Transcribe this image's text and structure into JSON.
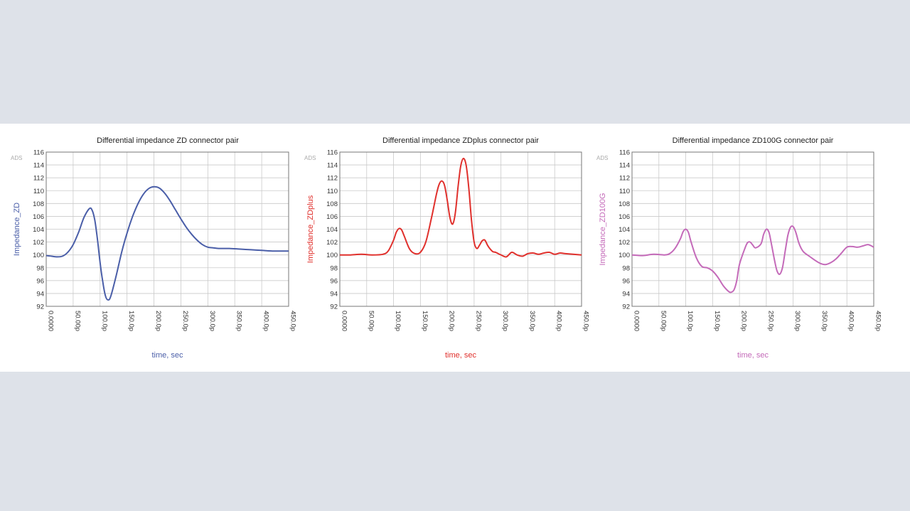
{
  "chart_data": [
    {
      "type": "line",
      "title": "Differential impedance ZD connector pair",
      "xlabel": "time, sec",
      "ylabel": "Impedance_ZD",
      "corner_mark": "ADS",
      "color": "#4a5ea8",
      "xlim": [
        0,
        450
      ],
      "ylim": [
        92,
        116
      ],
      "x_ticks": [
        "0.0000",
        "50.00p",
        "100.0p",
        "150.0p",
        "200.0p",
        "250.0p",
        "300.0p",
        "350.0p",
        "400.0p",
        "450.0p"
      ],
      "y_ticks": [
        "116",
        "114",
        "112",
        "110",
        "108",
        "106",
        "104",
        "102",
        "100",
        "98",
        "96",
        "94",
        "92"
      ],
      "grid": true,
      "series": [
        {
          "x": [
            0,
            10,
            20,
            30,
            40,
            50,
            60,
            70,
            80,
            85,
            90,
            95,
            100,
            105,
            110,
            115,
            120,
            130,
            140,
            150,
            160,
            170,
            180,
            190,
            200,
            210,
            220,
            230,
            240,
            250,
            260,
            270,
            280,
            290,
            300,
            310,
            320,
            340,
            360,
            380,
            400,
            420,
            450
          ],
          "y": [
            99.9,
            99.8,
            99.7,
            99.8,
            100.4,
            101.6,
            103.5,
            105.8,
            107.2,
            107.0,
            105.5,
            102.5,
            98.8,
            95.8,
            93.6,
            93.0,
            93.6,
            96.8,
            100.4,
            103.4,
            105.9,
            107.9,
            109.4,
            110.3,
            110.6,
            110.4,
            109.6,
            108.4,
            107.0,
            105.6,
            104.3,
            103.2,
            102.3,
            101.6,
            101.2,
            101.1,
            101.0,
            101.0,
            100.9,
            100.8,
            100.7,
            100.6,
            100.6
          ]
        }
      ]
    },
    {
      "type": "line",
      "title": "Differential impedance ZDplus connector pair",
      "xlabel": "time, sec",
      "ylabel": "Impedance_ZDplus",
      "corner_mark": "ADS",
      "color": "#e0302c",
      "xlim": [
        0,
        450
      ],
      "ylim": [
        92,
        116
      ],
      "x_ticks": [
        "0.0000",
        "50.00p",
        "100.0p",
        "150.0p",
        "200.0p",
        "250.0p",
        "300.0p",
        "350.0p",
        "400.0p",
        "450.0p"
      ],
      "y_ticks": [
        "116",
        "114",
        "112",
        "110",
        "108",
        "106",
        "104",
        "102",
        "100",
        "98",
        "96",
        "94",
        "92"
      ],
      "grid": true,
      "series": [
        {
          "x": [
            0,
            20,
            40,
            60,
            80,
            90,
            100,
            105,
            110,
            115,
            120,
            130,
            140,
            150,
            160,
            170,
            180,
            185,
            190,
            195,
            200,
            205,
            210,
            215,
            220,
            225,
            230,
            235,
            240,
            245,
            250,
            255,
            260,
            265,
            270,
            275,
            280,
            285,
            290,
            300,
            310,
            320,
            330,
            340,
            350,
            360,
            370,
            380,
            390,
            400,
            410,
            420,
            450
          ],
          "y": [
            100.0,
            100.0,
            100.1,
            100.0,
            100.1,
            100.6,
            102.3,
            103.5,
            104.1,
            103.9,
            102.9,
            100.9,
            100.2,
            100.4,
            102.0,
            105.5,
            109.5,
            111.0,
            111.5,
            110.8,
            108.5,
            105.8,
            104.8,
            106.5,
            110.5,
            113.8,
            115.0,
            114.0,
            110.5,
            105.5,
            102.0,
            101.0,
            101.5,
            102.2,
            102.3,
            101.5,
            100.9,
            100.5,
            100.4,
            100.0,
            99.7,
            100.4,
            100.0,
            99.8,
            100.2,
            100.3,
            100.1,
            100.3,
            100.4,
            100.1,
            100.3,
            100.2,
            100.0
          ]
        }
      ]
    },
    {
      "type": "line",
      "title": "Differential impedance ZD100G connector pair",
      "xlabel": "time, sec",
      "ylabel": "Impedance_ZD100G",
      "corner_mark": "ADS",
      "color": "#c46ab9",
      "xlim": [
        0,
        450
      ],
      "ylim": [
        92,
        116
      ],
      "x_ticks": [
        "0.0000",
        "50.00p",
        "100.0p",
        "150.0p",
        "200.0p",
        "250.0p",
        "300.0p",
        "350.0p",
        "400.0p",
        "450.0p"
      ],
      "y_ticks": [
        "116",
        "114",
        "112",
        "110",
        "108",
        "106",
        "104",
        "102",
        "100",
        "98",
        "96",
        "94",
        "92"
      ],
      "grid": true,
      "series": [
        {
          "x": [
            0,
            20,
            40,
            60,
            70,
            80,
            90,
            95,
            100,
            105,
            110,
            120,
            130,
            140,
            150,
            160,
            170,
            180,
            185,
            190,
            195,
            200,
            210,
            215,
            220,
            225,
            230,
            240,
            245,
            250,
            255,
            260,
            265,
            270,
            275,
            280,
            285,
            290,
            295,
            300,
            305,
            310,
            315,
            320,
            330,
            340,
            350,
            360,
            370,
            380,
            390,
            400,
            410,
            420,
            430,
            440,
            450
          ],
          "y": [
            100.0,
            99.9,
            100.1,
            100.0,
            100.2,
            101.0,
            102.5,
            103.6,
            104.0,
            103.5,
            102.0,
            99.5,
            98.2,
            98.0,
            97.5,
            96.5,
            95.2,
            94.3,
            94.2,
            94.6,
            96.0,
            98.5,
            101.0,
            101.9,
            102.0,
            101.5,
            101.1,
            101.7,
            103.2,
            104.0,
            103.5,
            101.5,
            99.3,
            97.5,
            97.0,
            98.0,
            100.5,
            103.0,
            104.3,
            104.4,
            103.5,
            102.0,
            101.0,
            100.4,
            99.8,
            99.2,
            98.7,
            98.5,
            98.8,
            99.4,
            100.3,
            101.2,
            101.3,
            101.2,
            101.4,
            101.6,
            101.2
          ]
        }
      ]
    }
  ]
}
